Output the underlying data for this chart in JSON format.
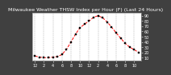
{
  "title": "Milwaukee Weather THSW Index per Hour (F) (Last 24 Hours)",
  "hours": [
    0,
    1,
    2,
    3,
    4,
    5,
    6,
    7,
    8,
    9,
    10,
    11,
    12,
    13,
    14,
    15,
    16,
    17,
    18,
    19,
    20,
    21,
    22,
    23
  ],
  "values": [
    13,
    11,
    10,
    10,
    11,
    12,
    16,
    26,
    40,
    55,
    67,
    74,
    80,
    87,
    90,
    86,
    78,
    68,
    57,
    47,
    37,
    30,
    25,
    20
  ],
  "ylim": [
    5,
    95
  ],
  "xlim": [
    -0.5,
    23.5
  ],
  "yticks": [
    10,
    20,
    30,
    40,
    50,
    60,
    70,
    80,
    90
  ],
  "ytick_labels": [
    "10",
    "20",
    "30",
    "40",
    "50",
    "60",
    "70",
    "80",
    "90"
  ],
  "xticks": [
    0,
    2,
    4,
    6,
    8,
    10,
    12,
    14,
    16,
    18,
    20,
    22
  ],
  "xtick_labels": [
    "12",
    "2",
    "4",
    "6",
    "8",
    "10",
    "12",
    "2",
    "4",
    "6",
    "8",
    "10"
  ],
  "line_color": "#ff0000",
  "marker_color": "#000000",
  "marker_size": 1.5,
  "line_style": "--",
  "line_width": 0.7,
  "grid_color": "#888888",
  "grid_style": "--",
  "bg_color": "#ffffff",
  "outer_bg": "#404040",
  "title_fontsize": 4.5,
  "tick_fontsize": 3.5,
  "title_color": "#ffffff"
}
